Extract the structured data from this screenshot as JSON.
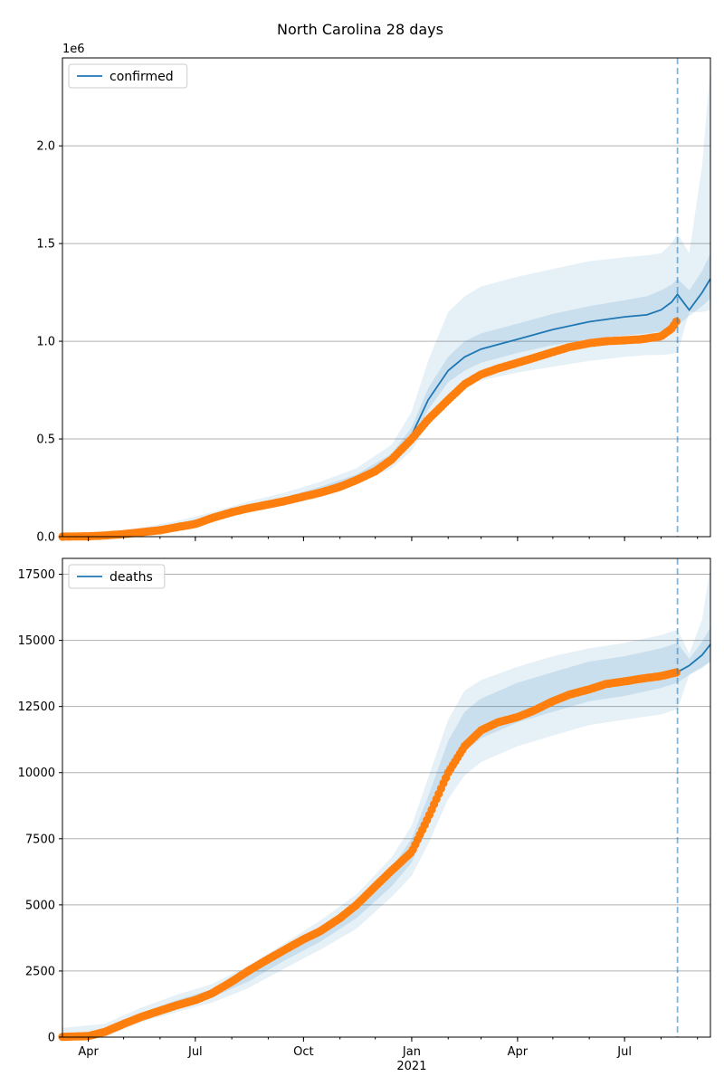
{
  "title": "North Carolina 28 days",
  "colors": {
    "model": "#1f77b4",
    "observed": "#ff7f0e",
    "band": "#1f77b4",
    "grid": "#b0b0b0",
    "vline": "#1f77b4"
  },
  "x_axis": {
    "range": [
      "2020-03-10",
      "2021-09-12"
    ],
    "major_ticks": [
      {
        "date": "2020-04-01",
        "label": "Apr"
      },
      {
        "date": "2020-07-01",
        "label": "Jul"
      },
      {
        "date": "2020-10-01",
        "label": "Oct"
      },
      {
        "date": "2021-01-01",
        "label": "Jan"
      },
      {
        "date": "2021-04-01",
        "label": "Apr"
      },
      {
        "date": "2021-07-01",
        "label": "Jul"
      }
    ],
    "year_label": "2021",
    "vline_date": "2021-08-15"
  },
  "chart_data": [
    {
      "type": "line",
      "legend": "confirmed",
      "legend_loc": "upper-left",
      "grid": "horizontal",
      "ylim": [
        0,
        2450000
      ],
      "offset_label": "1e6",
      "yticks": [
        0,
        500000,
        1000000,
        1500000,
        2000000
      ],
      "ytick_labels": [
        "0.0",
        "0.5",
        "1.0",
        "1.5",
        "2.0"
      ],
      "model": {
        "x": [
          "2020-03-10",
          "2020-04-15",
          "2020-05-15",
          "2020-06-15",
          "2020-07-15",
          "2020-08-15",
          "2020-09-15",
          "2020-10-15",
          "2020-11-15",
          "2020-12-15",
          "2021-01-01",
          "2021-01-15",
          "2021-02-01",
          "2021-02-15",
          "2021-03-01",
          "2021-04-01",
          "2021-05-01",
          "2021-06-01",
          "2021-07-01",
          "2021-07-20",
          "2021-08-01",
          "2021-08-10",
          "2021-08-15",
          "2021-08-25",
          "2021-09-05",
          "2021-09-12"
        ],
        "y": [
          0,
          10000,
          30000,
          60000,
          100000,
          150000,
          190000,
          240000,
          300000,
          400000,
          520000,
          700000,
          850000,
          920000,
          960000,
          1010000,
          1060000,
          1100000,
          1125000,
          1135000,
          1160000,
          1200000,
          1240000,
          1160000,
          1250000,
          1320000
        ],
        "bands": {
          "inner_lower": [
            0,
            8000,
            26000,
            55000,
            93000,
            140000,
            180000,
            225000,
            285000,
            380000,
            490000,
            650000,
            790000,
            850000,
            890000,
            940000,
            980000,
            1010000,
            1030000,
            1040000,
            1050000,
            1060000,
            1080000,
            1130000,
            1180000,
            1220000
          ],
          "inner_upper": [
            0,
            12000,
            34000,
            66000,
            108000,
            160000,
            202000,
            255000,
            318000,
            425000,
            560000,
            760000,
            920000,
            1000000,
            1040000,
            1090000,
            1140000,
            1180000,
            1210000,
            1230000,
            1260000,
            1290000,
            1320000,
            1260000,
            1360000,
            1450000
          ],
          "outer_lower": [
            0,
            5000,
            20000,
            45000,
            80000,
            125000,
            165000,
            210000,
            265000,
            350000,
            440000,
            580000,
            710000,
            770000,
            800000,
            840000,
            870000,
            900000,
            920000,
            930000,
            930000,
            935000,
            940000,
            1150000,
            1150000,
            1160000
          ],
          "outer_upper": [
            0,
            20000,
            45000,
            80000,
            125000,
            180000,
            225000,
            280000,
            350000,
            470000,
            640000,
            900000,
            1150000,
            1230000,
            1280000,
            1330000,
            1370000,
            1410000,
            1430000,
            1440000,
            1450000,
            1500000,
            1550000,
            1450000,
            1900000,
            2400000
          ]
        }
      },
      "observed": {
        "x": [
          "2020-03-10",
          "2020-04-01",
          "2020-04-15",
          "2020-05-01",
          "2020-05-15",
          "2020-06-01",
          "2020-06-15",
          "2020-07-01",
          "2020-07-15",
          "2020-08-01",
          "2020-08-15",
          "2020-09-01",
          "2020-09-15",
          "2020-10-01",
          "2020-10-15",
          "2020-11-01",
          "2020-11-15",
          "2020-12-01",
          "2020-12-15",
          "2021-01-01",
          "2021-01-15",
          "2021-02-01",
          "2021-02-15",
          "2021-03-01",
          "2021-03-15",
          "2021-04-01",
          "2021-04-15",
          "2021-05-01",
          "2021-05-15",
          "2021-06-01",
          "2021-06-15",
          "2021-07-01",
          "2021-07-15",
          "2021-08-01",
          "2021-08-10",
          "2021-08-15"
        ],
        "y": [
          100,
          2000,
          6000,
          13000,
          22000,
          33000,
          48000,
          65000,
          95000,
          125000,
          145000,
          165000,
          182000,
          205000,
          225000,
          255000,
          290000,
          335000,
          395000,
          500000,
          600000,
          700000,
          780000,
          830000,
          860000,
          890000,
          915000,
          945000,
          970000,
          990000,
          1000000,
          1005000,
          1010000,
          1025000,
          1065000,
          1110000
        ]
      }
    },
    {
      "type": "line",
      "legend": "deaths",
      "legend_loc": "upper-left",
      "grid": "horizontal",
      "ylim": [
        0,
        18100
      ],
      "yticks": [
        0,
        2500,
        5000,
        7500,
        10000,
        12500,
        15000,
        17500
      ],
      "ytick_labels": [
        "0",
        "2500",
        "5000",
        "7500",
        "10000",
        "12500",
        "15000",
        "17500"
      ],
      "model": {
        "x": [
          "2021-08-15",
          "2021-08-25",
          "2021-09-05",
          "2021-09-12"
        ],
        "y": [
          13800,
          14050,
          14450,
          14850
        ],
        "bands": {
          "x": [
            "2020-03-10",
            "2020-04-15",
            "2020-05-15",
            "2020-06-15",
            "2020-07-15",
            "2020-08-15",
            "2020-09-15",
            "2020-10-15",
            "2020-11-15",
            "2020-12-15",
            "2021-01-01",
            "2021-01-15",
            "2021-02-01",
            "2021-02-15",
            "2021-03-01",
            "2021-04-01",
            "2021-05-01",
            "2021-06-01",
            "2021-07-01",
            "2021-08-01",
            "2021-08-15",
            "2021-08-25",
            "2021-09-05",
            "2021-09-12"
          ],
          "inner_lower": [
            0,
            50,
            700,
            1100,
            1500,
            2100,
            2900,
            3600,
            4500,
            5700,
            6600,
            8000,
            9900,
            10800,
            11300,
            11900,
            12300,
            12700,
            12900,
            13200,
            13400,
            13700,
            13950,
            14200
          ],
          "inner_upper": [
            50,
            300,
            900,
            1400,
            1800,
            2500,
            3300,
            4100,
            5000,
            6400,
            7500,
            9100,
            11200,
            12300,
            12800,
            13400,
            13800,
            14200,
            14400,
            14700,
            14900,
            14300,
            14950,
            15500
          ],
          "outer_lower": [
            0,
            0,
            550,
            950,
            1300,
            1850,
            2600,
            3300,
            4100,
            5300,
            6100,
            7300,
            9000,
            9900,
            10400,
            11000,
            11400,
            11800,
            12000,
            12200,
            12400,
            13700,
            14000,
            14200
          ],
          "outer_upper": [
            350,
            500,
            1100,
            1600,
            2000,
            2700,
            3550,
            4400,
            5400,
            6800,
            8000,
            9800,
            12000,
            13100,
            13500,
            14000,
            14400,
            14700,
            14900,
            15200,
            15400,
            14500,
            15800,
            17800
          ]
        }
      },
      "observed": {
        "x": [
          "2020-03-10",
          "2020-04-01",
          "2020-04-15",
          "2020-05-01",
          "2020-05-15",
          "2020-06-01",
          "2020-06-15",
          "2020-07-01",
          "2020-07-15",
          "2020-08-01",
          "2020-08-15",
          "2020-09-01",
          "2020-09-15",
          "2020-10-01",
          "2020-10-15",
          "2020-11-01",
          "2020-11-15",
          "2020-12-01",
          "2020-12-15",
          "2021-01-01",
          "2021-01-15",
          "2021-02-01",
          "2021-02-15",
          "2021-03-01",
          "2021-03-15",
          "2021-04-01",
          "2021-04-15",
          "2021-05-01",
          "2021-05-15",
          "2021-06-01",
          "2021-06-15",
          "2021-07-01",
          "2021-07-15",
          "2021-08-01",
          "2021-08-15"
        ],
        "y": [
          10,
          40,
          200,
          500,
          750,
          1000,
          1200,
          1400,
          1650,
          2100,
          2500,
          2950,
          3300,
          3700,
          4000,
          4500,
          5000,
          5700,
          6300,
          7000,
          8300,
          10000,
          11000,
          11600,
          11900,
          12100,
          12350,
          12700,
          12950,
          13150,
          13350,
          13450,
          13550,
          13650,
          13800
        ]
      }
    }
  ]
}
